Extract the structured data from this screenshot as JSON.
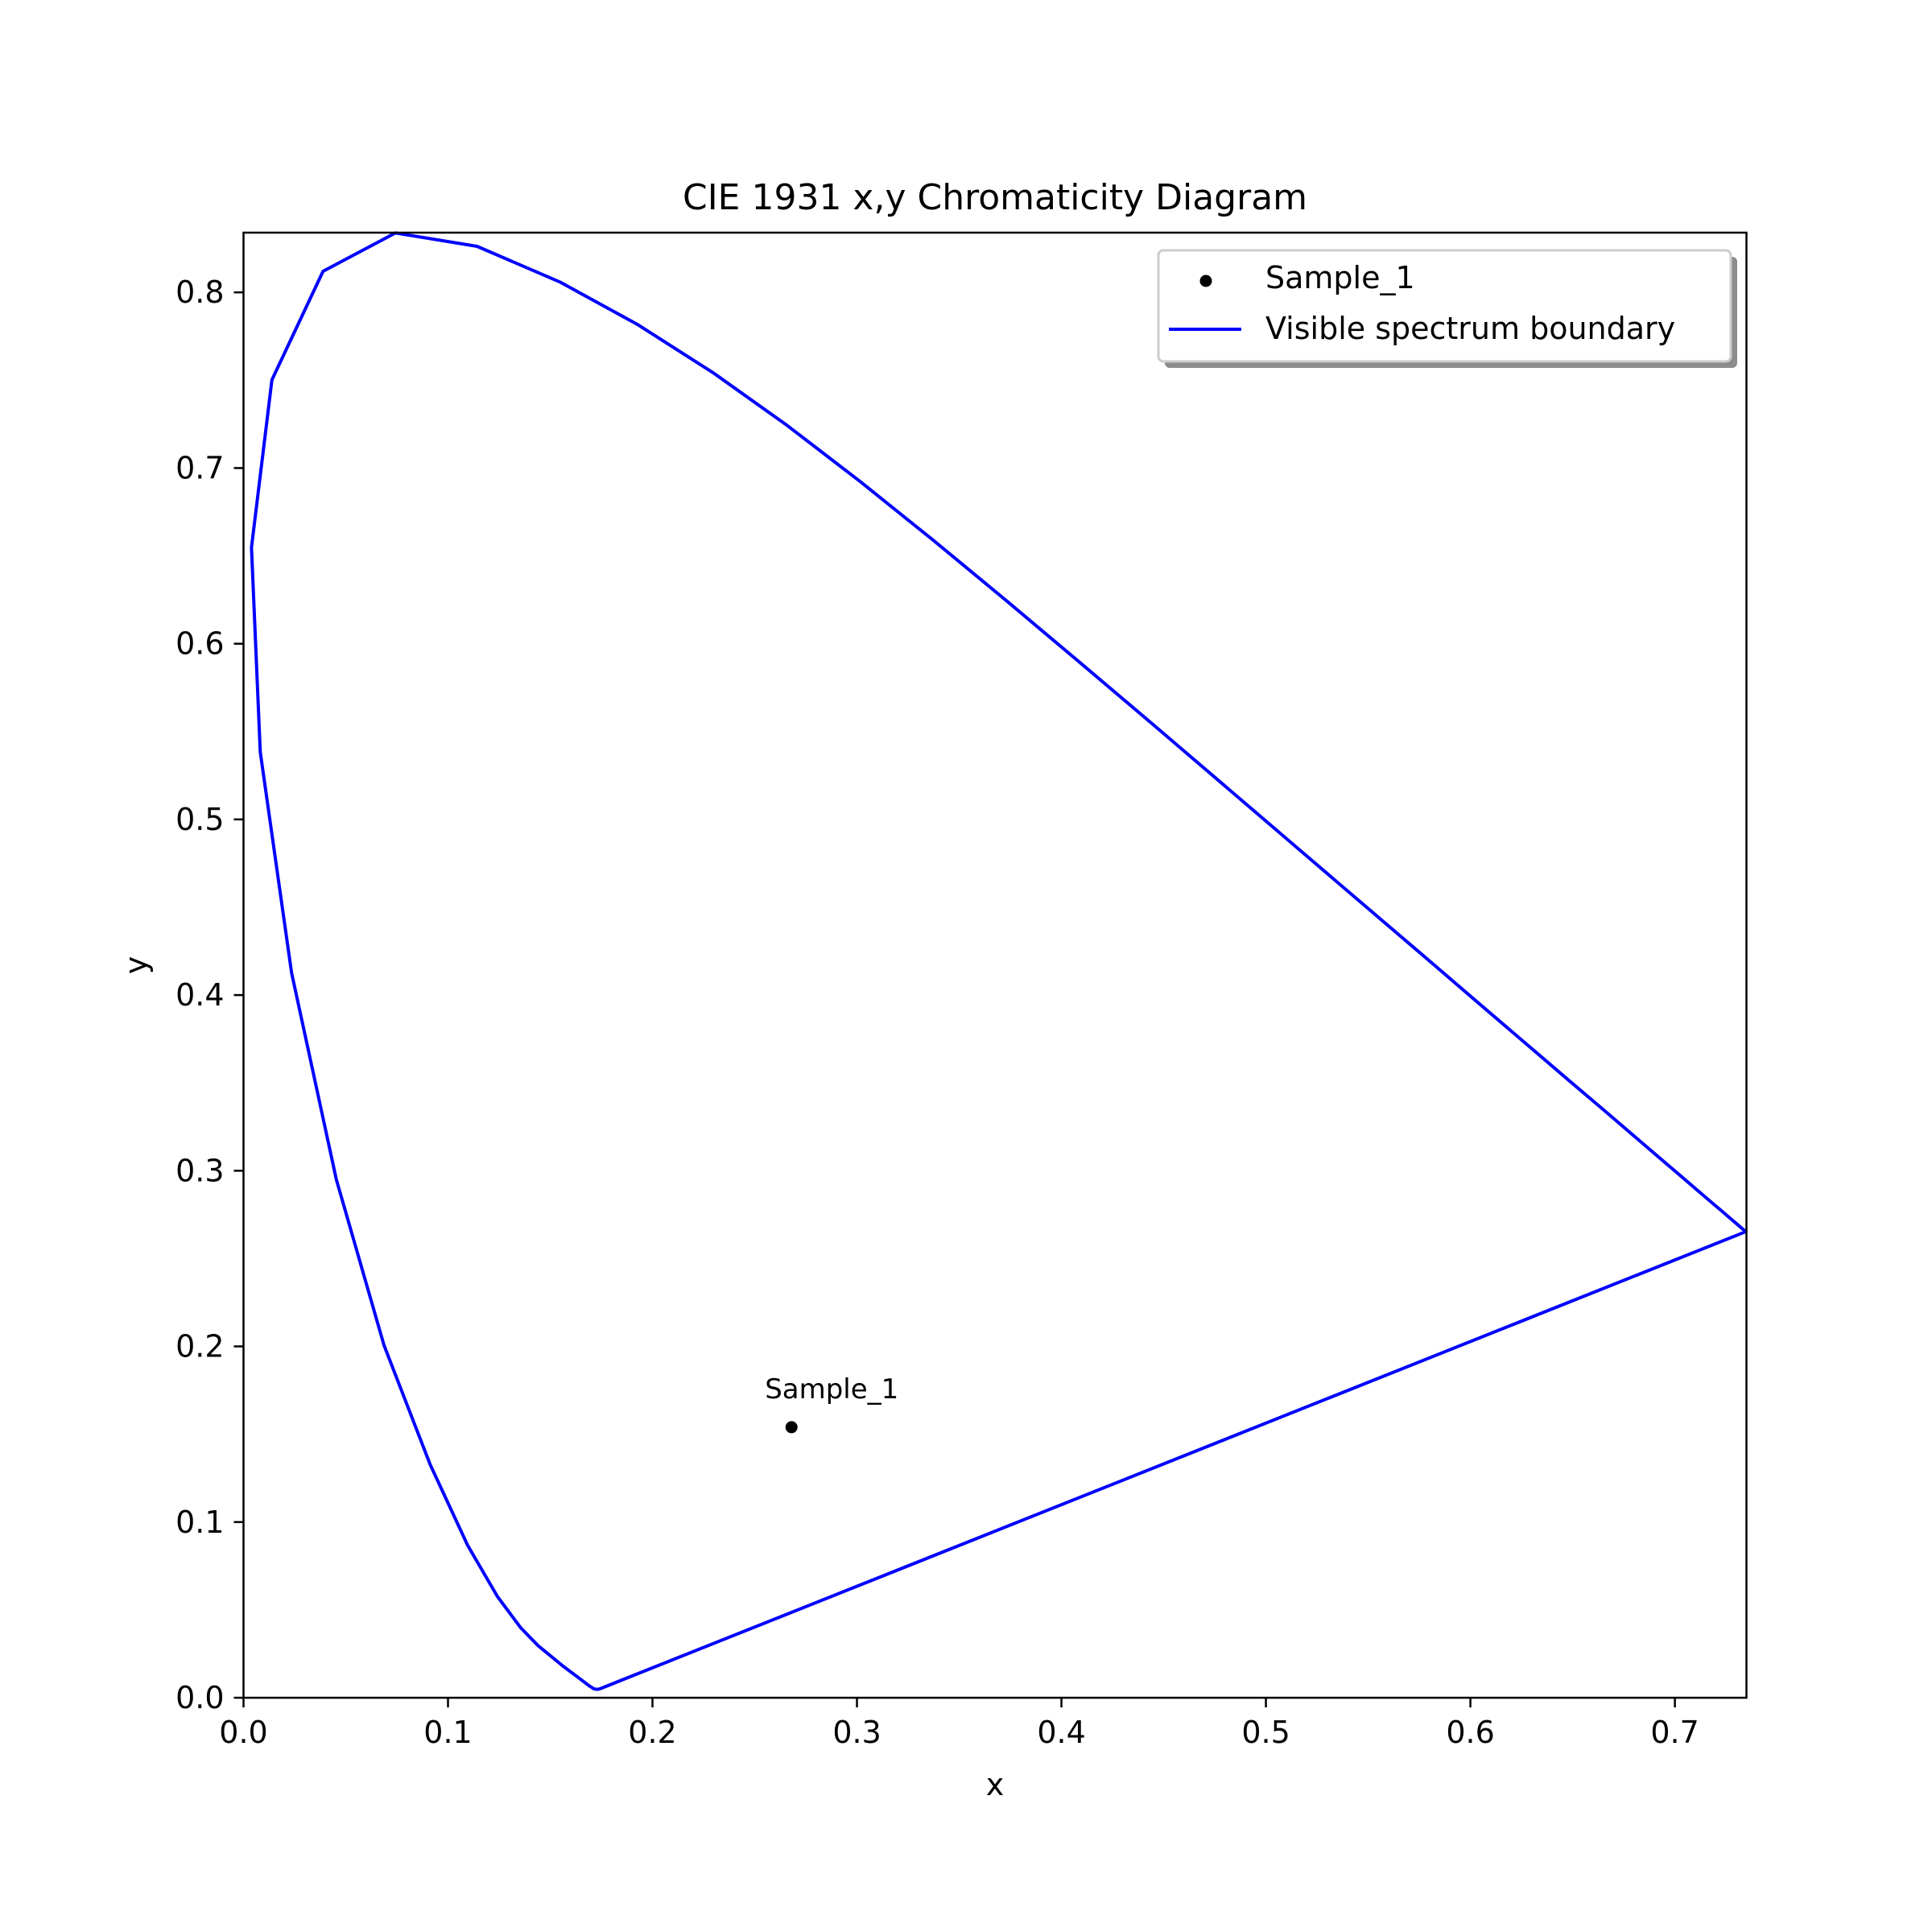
{
  "chart_data": {
    "type": "line",
    "title": "CIE 1931 x,y Chromaticity Diagram",
    "xlabel": "x",
    "ylabel": "y",
    "xlim": [
      0.0,
      0.735
    ],
    "ylim": [
      0.0,
      0.834
    ],
    "xticks": [
      0.0,
      0.1,
      0.2,
      0.3,
      0.4,
      0.5,
      0.6,
      0.7
    ],
    "yticks": [
      0.0,
      0.1,
      0.2,
      0.3,
      0.4,
      0.5,
      0.6,
      0.7,
      0.8
    ],
    "xtick_labels": [
      "0.0",
      "0.1",
      "0.2",
      "0.3",
      "0.4",
      "0.5",
      "0.6",
      "0.7"
    ],
    "ytick_labels": [
      "0.0",
      "0.1",
      "0.2",
      "0.3",
      "0.4",
      "0.5",
      "0.6",
      "0.7",
      "0.8"
    ],
    "grid": false,
    "legend_placement": "upper right",
    "series": [
      {
        "name": "Visible spectrum boundary",
        "kind": "line",
        "color": "#0000ff",
        "points": [
          [
            0.1741,
            0.005
          ],
          [
            0.1738,
            0.0049
          ],
          [
            0.1736,
            0.0049
          ],
          [
            0.1733,
            0.0048
          ],
          [
            0.1726,
            0.0048
          ],
          [
            0.1714,
            0.0051
          ],
          [
            0.1689,
            0.0069
          ],
          [
            0.1644,
            0.0109
          ],
          [
            0.1566,
            0.0177
          ],
          [
            0.144,
            0.0297
          ],
          [
            0.1355,
            0.0399
          ],
          [
            0.1241,
            0.0578
          ],
          [
            0.1096,
            0.0868
          ],
          [
            0.0913,
            0.1327
          ],
          [
            0.0687,
            0.2007
          ],
          [
            0.0454,
            0.295
          ],
          [
            0.0235,
            0.4127
          ],
          [
            0.0082,
            0.5384
          ],
          [
            0.0039,
            0.6548
          ],
          [
            0.0139,
            0.7502
          ],
          [
            0.0389,
            0.812
          ],
          [
            0.0743,
            0.8338
          ],
          [
            0.1142,
            0.8262
          ],
          [
            0.1547,
            0.8059
          ],
          [
            0.1929,
            0.7816
          ],
          [
            0.2296,
            0.7543
          ],
          [
            0.2658,
            0.7243
          ],
          [
            0.3016,
            0.6923
          ],
          [
            0.3373,
            0.6589
          ],
          [
            0.3731,
            0.6245
          ],
          [
            0.4087,
            0.5896
          ],
          [
            0.4441,
            0.5547
          ],
          [
            0.4788,
            0.5202
          ],
          [
            0.5125,
            0.4866
          ],
          [
            0.5448,
            0.4544
          ],
          [
            0.5752,
            0.4242
          ],
          [
            0.6029,
            0.3965
          ],
          [
            0.627,
            0.3725
          ],
          [
            0.6482,
            0.3514
          ],
          [
            0.6658,
            0.334
          ],
          [
            0.6801,
            0.3197
          ],
          [
            0.6915,
            0.3083
          ],
          [
            0.7006,
            0.2993
          ],
          [
            0.7079,
            0.292
          ],
          [
            0.714,
            0.2859
          ],
          [
            0.719,
            0.2809
          ],
          [
            0.723,
            0.277
          ],
          [
            0.726,
            0.274
          ],
          [
            0.7283,
            0.2717
          ],
          [
            0.73,
            0.27
          ],
          [
            0.7311,
            0.2689
          ],
          [
            0.732,
            0.268
          ],
          [
            0.7327,
            0.2673
          ],
          [
            0.7334,
            0.2666
          ],
          [
            0.734,
            0.266
          ],
          [
            0.7344,
            0.2656
          ],
          [
            0.7346,
            0.2654
          ],
          [
            0.7347,
            0.2653
          ],
          [
            0.1741,
            0.005
          ]
        ]
      },
      {
        "name": "Sample_1",
        "kind": "scatter",
        "color": "#000000",
        "points": [
          [
            0.268,
            0.154
          ]
        ],
        "annotation": "Sample_1"
      }
    ]
  }
}
